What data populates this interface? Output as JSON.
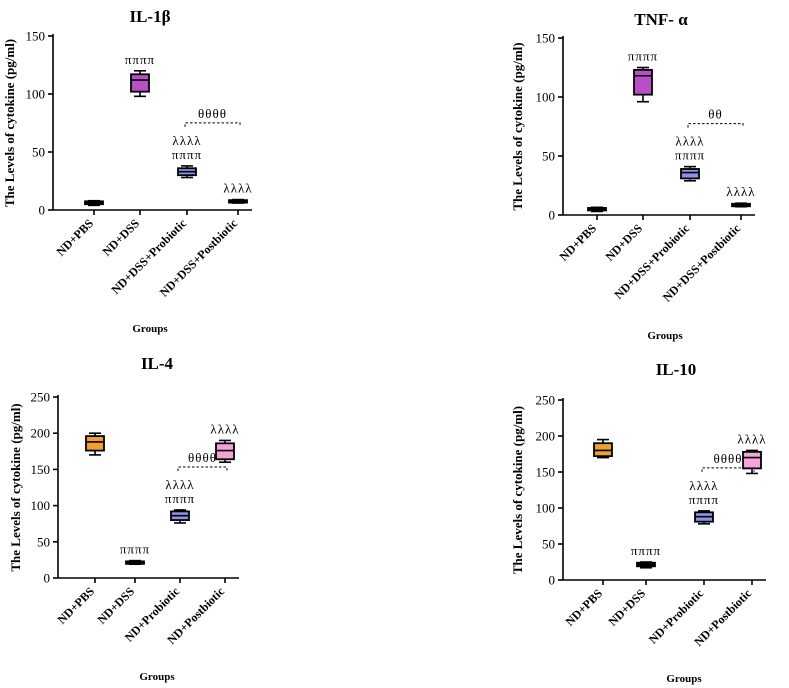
{
  "chart_data": [
    {
      "type": "box",
      "title": "IL-1β",
      "ylabel": "The Levels of cytokine (pg/ml)",
      "xlabel": "Groups",
      "ylim": [
        0,
        150
      ],
      "yticks": [
        0,
        50,
        100,
        150
      ],
      "categories": [
        "ND+PBS",
        "ND+DSS",
        "ND+DSS+Probiotic",
        "ND+DSS+Postbiotic"
      ],
      "boxes": [
        {
          "min": 4,
          "q1": 5,
          "median": 6,
          "q3": 7.5,
          "max": 8,
          "color": "#000000"
        },
        {
          "min": 98,
          "q1": 102,
          "median": 112,
          "q3": 117,
          "max": 120,
          "color": "#b94fc6"
        },
        {
          "min": 28,
          "q1": 30,
          "median": 33,
          "q3": 36,
          "max": 38,
          "color": "#8f8fe8"
        },
        {
          "min": 6,
          "q1": 7,
          "median": 8,
          "q3": 8.5,
          "max": 9,
          "color": "#000000"
        }
      ],
      "annotations": [
        {
          "group": 1,
          "lines": [
            "ππππ"
          ]
        },
        {
          "group": 2,
          "lines": [
            "λλλλ",
            "ππππ"
          ]
        },
        {
          "group": 3,
          "lines": [
            "λλλλ"
          ]
        }
      ],
      "bracket": {
        "from": 2,
        "to": 3,
        "label": "θθθθ"
      }
    },
    {
      "type": "box",
      "title": "TNF- α",
      "ylabel": "The Levels of cytokine (pg/ml)",
      "xlabel": "Groups",
      "ylim": [
        0,
        150
      ],
      "yticks": [
        0,
        50,
        100,
        150
      ],
      "categories": [
        "ND+PBS",
        "ND+DSS",
        "ND+DSS+Probiotic",
        "ND+DSS+Postbiotic"
      ],
      "boxes": [
        {
          "min": 3,
          "q1": 4,
          "median": 5,
          "q3": 6,
          "max": 6.5,
          "color": "#000000"
        },
        {
          "min": 96,
          "q1": 102,
          "median": 118,
          "q3": 123,
          "max": 125,
          "color": "#b94fc6"
        },
        {
          "min": 29,
          "q1": 31,
          "median": 36,
          "q3": 39,
          "max": 41,
          "color": "#8f8fe8"
        },
        {
          "min": 7,
          "q1": 8,
          "median": 9,
          "q3": 9.5,
          "max": 10,
          "color": "#000000"
        }
      ],
      "annotations": [
        {
          "group": 1,
          "lines": [
            "ππππ"
          ]
        },
        {
          "group": 2,
          "lines": [
            "λλλλ",
            "ππππ"
          ]
        },
        {
          "group": 3,
          "lines": [
            "λλλλ"
          ]
        }
      ],
      "bracket": {
        "from": 2,
        "to": 3,
        "label": "θθ"
      }
    },
    {
      "type": "box",
      "title": "IL-4",
      "ylabel": "The Levels of cytokine (pg/ml)",
      "xlabel": "Groups",
      "ylim": [
        0,
        250
      ],
      "yticks": [
        0,
        50,
        100,
        150,
        200,
        250
      ],
      "categories": [
        "ND+PBS",
        "ND+DSS",
        "ND+Probiotic",
        "ND+Postbiotic"
      ],
      "boxes": [
        {
          "min": 170,
          "q1": 176,
          "median": 188,
          "q3": 196,
          "max": 200,
          "color": "#f0a030"
        },
        {
          "min": 19,
          "q1": 21,
          "median": 22,
          "q3": 23,
          "max": 24,
          "color": "#000000"
        },
        {
          "min": 76,
          "q1": 80,
          "median": 86,
          "q3": 92,
          "max": 94,
          "color": "#8f8fe8"
        },
        {
          "min": 160,
          "q1": 164,
          "median": 176,
          "q3": 186,
          "max": 190,
          "color": "#f4a3d6"
        }
      ],
      "annotations": [
        {
          "group": 1,
          "lines": [
            "ππππ"
          ]
        },
        {
          "group": 2,
          "lines": [
            "λλλλ",
            "ππππ"
          ]
        },
        {
          "group": 3,
          "lines": [
            "λλλλ"
          ]
        }
      ],
      "bracket": {
        "from": 2,
        "to": 3,
        "label": "θθθθ"
      }
    },
    {
      "type": "box",
      "title": "IL-10",
      "ylabel": "The Levels of cytokine (pg/ml)",
      "xlabel": "Groups",
      "ylim": [
        0,
        250
      ],
      "yticks": [
        0,
        50,
        100,
        150,
        200,
        250
      ],
      "categories": [
        "ND+PBS",
        "ND+DSS",
        "ND+Probiotic",
        "ND+Postbiotic"
      ],
      "boxes": [
        {
          "min": 170,
          "q1": 172,
          "median": 180,
          "q3": 190,
          "max": 195,
          "color": "#f0a030"
        },
        {
          "min": 17,
          "q1": 19,
          "median": 22,
          "q3": 24,
          "max": 25,
          "color": "#000000"
        },
        {
          "min": 78,
          "q1": 81,
          "median": 88,
          "q3": 94,
          "max": 96,
          "color": "#8f8fe8"
        },
        {
          "min": 148,
          "q1": 155,
          "median": 170,
          "q3": 178,
          "max": 180,
          "color": "#f4a3d6"
        }
      ],
      "annotations": [
        {
          "group": 1,
          "lines": [
            "ππππ"
          ]
        },
        {
          "group": 2,
          "lines": [
            "λλλλ",
            "ππππ"
          ]
        },
        {
          "group": 3,
          "lines": [
            "λλλλ"
          ]
        }
      ],
      "bracket": {
        "from": 2,
        "to": 3,
        "label": "θθθθ"
      }
    }
  ]
}
